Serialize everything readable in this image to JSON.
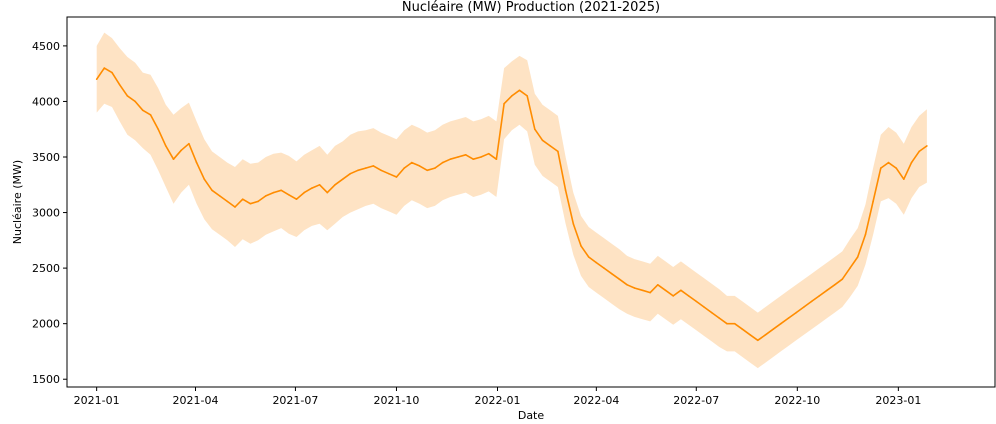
{
  "chart_data": {
    "type": "line",
    "title": "Nucléaire (MW) Production (2021-2025)",
    "xlabel": "Date",
    "ylabel": "Nucléaire (MW)",
    "ylim": [
      1430,
      4760
    ],
    "xlim": [
      "2020-12-05",
      "2023-03-30"
    ],
    "x_ticks": [
      "2021-01",
      "2021-04",
      "2021-07",
      "2021-10",
      "2022-01",
      "2022-04",
      "2022-07",
      "2022-10",
      "2023-01"
    ],
    "y_ticks": [
      1500,
      2000,
      2500,
      3000,
      3500,
      4000,
      4500
    ],
    "grid": false,
    "line_color": "#ff8c00",
    "band_color": "#fdd9b0",
    "series": [
      {
        "x": [
          "2021-01-01",
          "2021-01-08",
          "2021-01-15",
          "2021-01-22",
          "2021-01-29",
          "2021-02-05",
          "2021-02-12",
          "2021-02-19",
          "2021-02-26",
          "2021-03-05",
          "2021-03-12",
          "2021-03-19",
          "2021-03-26",
          "2021-04-02",
          "2021-04-09",
          "2021-04-16",
          "2021-04-23",
          "2021-04-30",
          "2021-05-07",
          "2021-05-14",
          "2021-05-21",
          "2021-05-28",
          "2021-06-04",
          "2021-06-11",
          "2021-06-18",
          "2021-06-25",
          "2021-07-02",
          "2021-07-09",
          "2021-07-16",
          "2021-07-23",
          "2021-07-30",
          "2021-08-06",
          "2021-08-13",
          "2021-08-20",
          "2021-08-27",
          "2021-09-03",
          "2021-09-10",
          "2021-09-17",
          "2021-09-24",
          "2021-10-01",
          "2021-10-08",
          "2021-10-15",
          "2021-10-22",
          "2021-10-29",
          "2021-11-05",
          "2021-11-12",
          "2021-11-19",
          "2021-11-26",
          "2021-12-03",
          "2021-12-10",
          "2021-12-17",
          "2021-12-24",
          "2021-12-31",
          "2022-01-07",
          "2022-01-14",
          "2022-01-21",
          "2022-01-28",
          "2022-02-04",
          "2022-02-11",
          "2022-02-18",
          "2022-02-25",
          "2022-03-04",
          "2022-03-11",
          "2022-03-18",
          "2022-03-25",
          "2022-04-01",
          "2022-04-08",
          "2022-04-15",
          "2022-04-22",
          "2022-04-29",
          "2022-05-06",
          "2022-05-13",
          "2022-05-20",
          "2022-05-27",
          "2022-06-03",
          "2022-06-10",
          "2022-06-17",
          "2022-06-24",
          "2022-07-01",
          "2022-07-08",
          "2022-07-15",
          "2022-07-22",
          "2022-07-29",
          "2022-08-05",
          "2022-08-12",
          "2022-08-19",
          "2022-08-26",
          "2022-09-02",
          "2022-09-09",
          "2022-09-16",
          "2022-09-23",
          "2022-09-30",
          "2022-10-07",
          "2022-10-14",
          "2022-10-21",
          "2022-10-28",
          "2022-11-04",
          "2022-11-11",
          "2022-11-18",
          "2022-11-25",
          "2022-12-02",
          "2022-12-09",
          "2022-12-16",
          "2022-12-23",
          "2022-12-30",
          "2023-01-06",
          "2023-01-13",
          "2023-01-20",
          "2023-01-27"
        ],
        "mean": [
          4200,
          4300,
          4260,
          4150,
          4050,
          4000,
          3920,
          3880,
          3750,
          3600,
          3480,
          3560,
          3620,
          3450,
          3300,
          3200,
          3150,
          3100,
          3050,
          3120,
          3080,
          3100,
          3150,
          3180,
          3200,
          3160,
          3120,
          3180,
          3220,
          3250,
          3180,
          3250,
          3300,
          3350,
          3380,
          3400,
          3420,
          3380,
          3350,
          3320,
          3400,
          3450,
          3420,
          3380,
          3400,
          3450,
          3480,
          3500,
          3520,
          3480,
          3500,
          3530,
          3480,
          3980,
          4050,
          4100,
          4050,
          3750,
          3650,
          3600,
          3550,
          3200,
          2900,
          2700,
          2600,
          2550,
          2500,
          2450,
          2400,
          2350,
          2320,
          2300,
          2280,
          2350,
          2300,
          2250,
          2300,
          2250,
          2200,
          2150,
          2100,
          2050,
          2000,
          2000,
          1950,
          1900,
          1850,
          1900,
          1950,
          2000,
          2050,
          2100,
          2150,
          2200,
          2250,
          2300,
          2350,
          2400,
          2500,
          2600,
          2800,
          3100,
          3400,
          3450,
          3400,
          3300,
          3450,
          3550,
          3600
        ],
        "low": [
          3900,
          3980,
          3950,
          3820,
          3700,
          3650,
          3580,
          3520,
          3380,
          3230,
          3080,
          3180,
          3250,
          3080,
          2940,
          2850,
          2800,
          2750,
          2690,
          2760,
          2720,
          2750,
          2800,
          2830,
          2860,
          2810,
          2780,
          2840,
          2880,
          2900,
          2840,
          2900,
          2960,
          3000,
          3030,
          3060,
          3080,
          3040,
          3010,
          2980,
          3060,
          3110,
          3080,
          3040,
          3060,
          3110,
          3140,
          3160,
          3180,
          3140,
          3160,
          3190,
          3140,
          3660,
          3740,
          3790,
          3730,
          3430,
          3330,
          3280,
          3230,
          2900,
          2620,
          2430,
          2330,
          2280,
          2230,
          2180,
          2130,
          2090,
          2060,
          2040,
          2020,
          2090,
          2040,
          1990,
          2040,
          1990,
          1940,
          1890,
          1840,
          1790,
          1750,
          1750,
          1700,
          1650,
          1600,
          1650,
          1700,
          1750,
          1800,
          1850,
          1900,
          1950,
          2000,
          2050,
          2100,
          2150,
          2240,
          2340,
          2530,
          2800,
          3100,
          3130,
          3080,
          2980,
          3130,
          3230,
          3270
        ],
        "high": [
          4500,
          4620,
          4570,
          4480,
          4400,
          4350,
          4260,
          4240,
          4120,
          3970,
          3880,
          3940,
          3990,
          3820,
          3660,
          3550,
          3500,
          3450,
          3410,
          3480,
          3440,
          3450,
          3500,
          3530,
          3540,
          3510,
          3460,
          3520,
          3560,
          3600,
          3520,
          3600,
          3640,
          3700,
          3730,
          3740,
          3760,
          3720,
          3690,
          3660,
          3740,
          3790,
          3760,
          3720,
          3740,
          3790,
          3820,
          3840,
          3860,
          3820,
          3840,
          3870,
          3820,
          4300,
          4360,
          4410,
          4370,
          4070,
          3970,
          3920,
          3870,
          3500,
          3180,
          2970,
          2870,
          2820,
          2770,
          2720,
          2670,
          2610,
          2580,
          2560,
          2540,
          2610,
          2560,
          2510,
          2560,
          2510,
          2460,
          2410,
          2360,
          2310,
          2250,
          2250,
          2200,
          2150,
          2100,
          2150,
          2200,
          2250,
          2300,
          2350,
          2400,
          2450,
          2500,
          2550,
          2600,
          2650,
          2760,
          2860,
          3070,
          3400,
          3700,
          3770,
          3720,
          3620,
          3770,
          3870,
          3930
        ]
      }
    ]
  }
}
